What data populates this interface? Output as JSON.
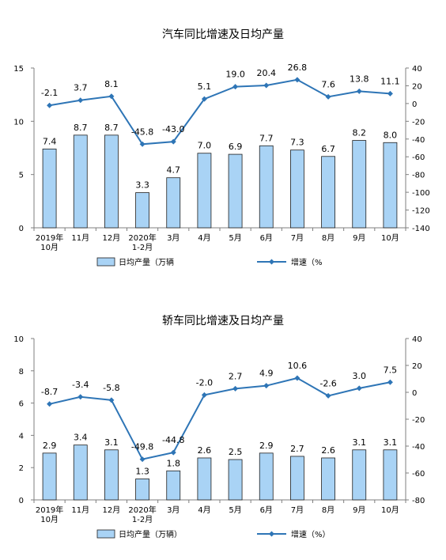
{
  "chart_data": [
    {
      "type": "bar+line",
      "title": "汽车同比增速及日均产量",
      "categories": [
        [
          "2019年",
          "10月"
        ],
        [
          "11月"
        ],
        [
          "12月"
        ],
        [
          "2020年",
          "1-2月"
        ],
        [
          "3月"
        ],
        [
          "4月"
        ],
        [
          "5月"
        ],
        [
          "6月"
        ],
        [
          "7月"
        ],
        [
          "8月"
        ],
        [
          "9月"
        ],
        [
          "10月"
        ]
      ],
      "bar_series": {
        "name": "日均产量（万辆",
        "values": [
          7.4,
          8.7,
          8.7,
          3.3,
          4.7,
          7.0,
          6.9,
          7.7,
          7.3,
          6.7,
          8.2,
          8.0
        ]
      },
      "line_series": {
        "name": "增速（%",
        "values": [
          -2.1,
          3.7,
          8.1,
          -45.8,
          -43.0,
          5.1,
          19.0,
          20.4,
          26.8,
          7.6,
          13.8,
          11.1
        ]
      },
      "bar_labels": [
        "7.4",
        "8.7",
        "8.7",
        "3.3",
        "4.7",
        "7.0",
        "6.9",
        "7.7",
        "7.3",
        "6.7",
        "8.2",
        "8.0"
      ],
      "line_labels": [
        "-2.1",
        "3.7",
        "8.1",
        "-45.8",
        "-43.0",
        "5.1",
        "19.0",
        "20.4",
        "26.8",
        "7.6",
        "13.8",
        "11.1"
      ],
      "y_left": {
        "lim": [
          0,
          15
        ],
        "ticks": [
          "0",
          "5",
          "10",
          "15"
        ]
      },
      "y_right": {
        "lim": [
          -140,
          40
        ],
        "ticks": [
          "-140",
          "-120",
          "-100",
          "-80",
          "-60",
          "-40",
          "-20",
          "0",
          "20",
          "40"
        ]
      },
      "legend_position": "bottom",
      "colors": {
        "bar_fill": "#a9d3f5",
        "bar_stroke": "#1f1f1f",
        "line": "#2e75b6"
      }
    },
    {
      "type": "bar+line",
      "title": "轿车同比增速及日均产量",
      "categories": [
        [
          "2019年",
          "10月"
        ],
        [
          "11月"
        ],
        [
          "12月"
        ],
        [
          "2020年",
          "1-2月"
        ],
        [
          "3月"
        ],
        [
          "4月"
        ],
        [
          "5月"
        ],
        [
          "6月"
        ],
        [
          "7月"
        ],
        [
          "8月"
        ],
        [
          "9月"
        ],
        [
          "10月"
        ]
      ],
      "bar_series": {
        "name": "日均产量（万辆）",
        "values": [
          2.9,
          3.4,
          3.1,
          1.3,
          1.8,
          2.6,
          2.5,
          2.9,
          2.7,
          2.6,
          3.1,
          3.1
        ]
      },
      "line_series": {
        "name": "增速（%）",
        "values": [
          -8.7,
          -3.4,
          -5.8,
          -49.8,
          -44.8,
          -2.0,
          2.7,
          4.9,
          10.6,
          -2.6,
          3.0,
          7.5
        ]
      },
      "bar_labels": [
        "2.9",
        "3.4",
        "3.1",
        "1.3",
        "1.8",
        "2.6",
        "2.5",
        "2.9",
        "2.7",
        "2.6",
        "3.1",
        "3.1"
      ],
      "line_labels": [
        "-8.7",
        "-3.4",
        "-5.8",
        "-49.8",
        "-44.8",
        "-2.0",
        "2.7",
        "4.9",
        "10.6",
        "-2.6",
        "3.0",
        "7.5"
      ],
      "y_left": {
        "lim": [
          0,
          10
        ],
        "ticks": [
          "0",
          "2",
          "4",
          "6",
          "8",
          "10"
        ]
      },
      "y_right": {
        "lim": [
          -80,
          40
        ],
        "ticks": [
          "-80",
          "-60",
          "-40",
          "-20",
          "0",
          "20",
          "40"
        ]
      },
      "legend_position": "bottom",
      "colors": {
        "bar_fill": "#a9d3f5",
        "bar_stroke": "#1f1f1f",
        "line": "#2e75b6"
      }
    }
  ]
}
